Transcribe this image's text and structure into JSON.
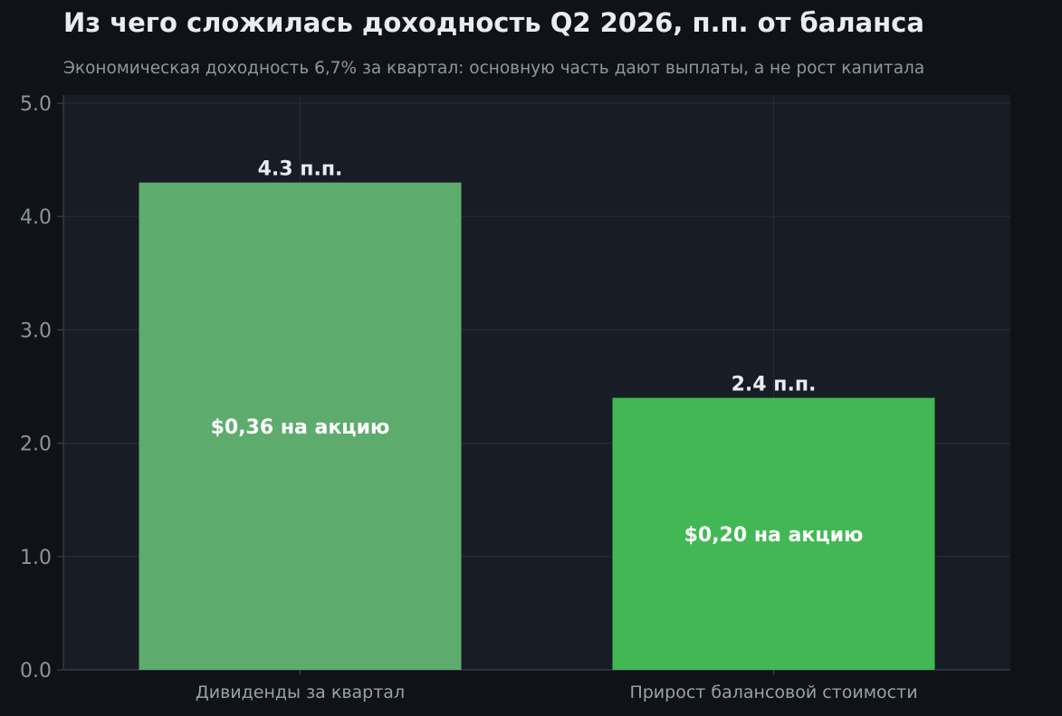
{
  "chart_data": {
    "type": "bar",
    "title": "Из чего сложилась доходность Q2 2026, п.п. от баланса",
    "subtitle": "Экономическая доходность 6,7% за квартал: основную часть дают выплаты, а не рост капитала",
    "categories": [
      "Дивиденды за квартал",
      "Прирост балансовой стоимости"
    ],
    "values": [
      4.3,
      2.4
    ],
    "value_labels": [
      "4.3 п.п.",
      "2.4 п.п."
    ],
    "inner_labels": [
      "$0,36 на акцию",
      "$0,20 на акцию"
    ],
    "bar_colors": [
      "#5eab6e",
      "#42b854"
    ],
    "ylim": [
      0,
      5.0
    ],
    "yticks": [
      0.0,
      1.0,
      2.0,
      3.0,
      4.0,
      5.0
    ],
    "ytick_labels": [
      "0.0",
      "1.0",
      "2.0",
      "3.0",
      "4.0",
      "5.0"
    ],
    "xlabel": "",
    "ylabel": "",
    "grid": true,
    "colors": {
      "background": "#0f1317",
      "plot_background": "#181c24",
      "grid": "#262b35",
      "axis": "#3a404b"
    }
  }
}
